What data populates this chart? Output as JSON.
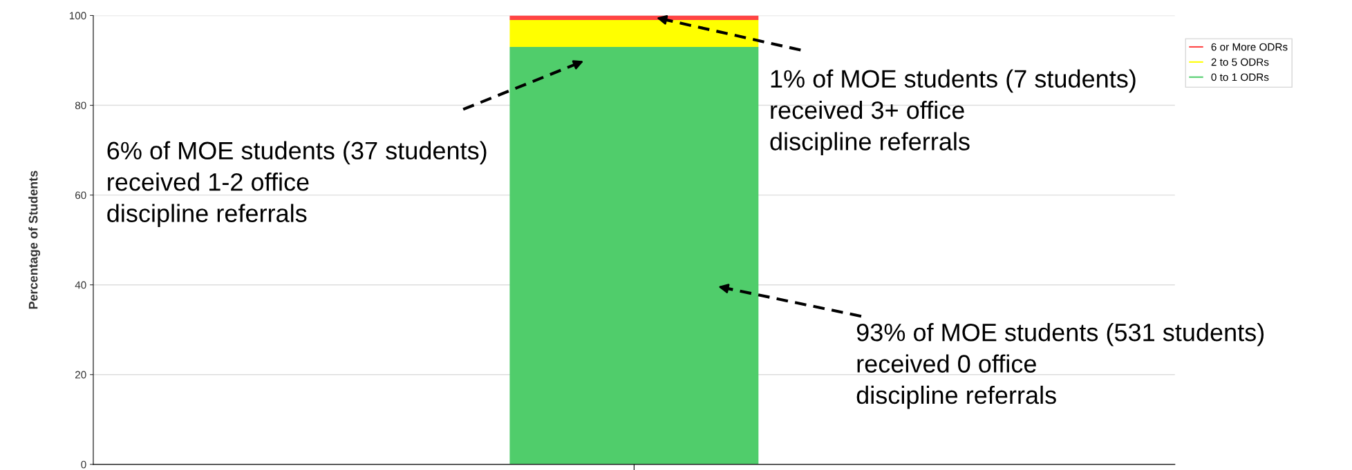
{
  "chart_data": {
    "type": "bar",
    "ylabel": "Percentage of Students",
    "categories": [
      null
    ],
    "stacked": true,
    "series": [
      {
        "name": "0 to 1 ODRs",
        "color": "#50cd6b",
        "values": [
          93
        ]
      },
      {
        "name": "2 to 5 ODRs",
        "color": "#ffff00",
        "values": [
          6
        ]
      },
      {
        "name": "6 or More ODRs",
        "color": "#ff4444",
        "values": [
          1
        ]
      }
    ],
    "ylim": [
      0,
      100
    ],
    "yticks": [
      0,
      20,
      40,
      60,
      80,
      100
    ],
    "grid": "y",
    "legend": "top right",
    "tick_labels": "y",
    "annotations": [
      "6% of MOE students (37 students)\nreceived 1-2 office\ndiscipline referrals",
      "1% of MOE students (7 students)\nreceived 3+ office\ndiscipline referrals",
      "93% of MOE students (531 students)\nreceived 0 office\ndiscipline referrals"
    ]
  }
}
